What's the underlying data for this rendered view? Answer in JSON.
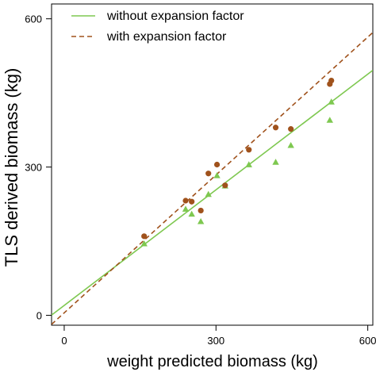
{
  "chart_data": {
    "type": "scatter",
    "title": "",
    "xlabel": "weight predicted biomass (kg)",
    "ylabel": "TLS derived biomass (kg)",
    "xlim": [
      -25,
      610
    ],
    "ylim": [
      -20,
      630
    ],
    "xticks": [
      0,
      300,
      600
    ],
    "yticks": [
      0,
      300,
      600
    ],
    "xtick_labels": [
      "0",
      "300",
      "600"
    ],
    "ytick_labels": [
      "0",
      "300",
      "600"
    ],
    "grid": false,
    "legend_position": "top-left",
    "series": [
      {
        "name": "without expansion factor",
        "marker": "triangle",
        "color": "#7ec850",
        "line_style": "solid",
        "fit": {
          "intercept": 20,
          "slope": 0.78
        },
        "points": [
          [
            158,
            145
          ],
          [
            240,
            215
          ],
          [
            252,
            205
          ],
          [
            270,
            190
          ],
          [
            285,
            245
          ],
          [
            302,
            283
          ],
          [
            318,
            262
          ],
          [
            365,
            305
          ],
          [
            418,
            310
          ],
          [
            448,
            344
          ],
          [
            525,
            395
          ],
          [
            528,
            432
          ]
        ]
      },
      {
        "name": "with expansion factor",
        "marker": "circle",
        "color": "#a0521c",
        "line_style": "dashed",
        "fit": {
          "intercept": 5,
          "slope": 0.93
        },
        "points": [
          [
            158,
            160
          ],
          [
            240,
            232
          ],
          [
            252,
            230
          ],
          [
            270,
            212
          ],
          [
            285,
            287
          ],
          [
            302,
            305
          ],
          [
            318,
            263
          ],
          [
            365,
            335
          ],
          [
            418,
            380
          ],
          [
            448,
            377
          ],
          [
            525,
            468
          ],
          [
            528,
            475
          ]
        ]
      }
    ]
  }
}
